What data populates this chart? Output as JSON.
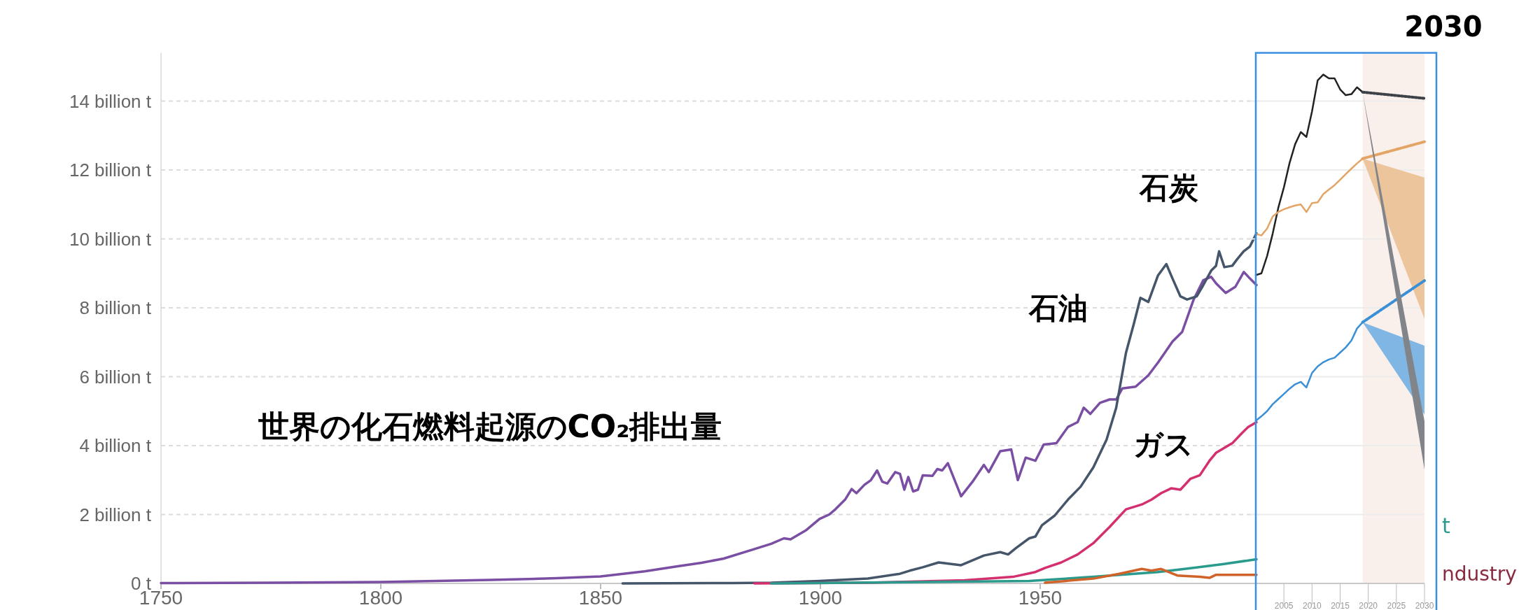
{
  "chart_data": [
    {
      "type": "line",
      "title": "世界の化石燃料起源のCO₂排出量",
      "annotations": [
        "石炭",
        "石油",
        "ガス",
        "t",
        "ndustry"
      ],
      "xlim": [
        1750,
        2000
      ],
      "xticks": [
        1750,
        1800,
        1850,
        1900,
        1950
      ],
      "ylim": [
        0,
        15.4
      ],
      "yticks": [
        {
          "value": 0,
          "label": "0 t"
        },
        {
          "value": 2,
          "label": "2 billion t"
        },
        {
          "value": 4,
          "label": "4 billion t"
        },
        {
          "value": 6,
          "label": "6 billion t"
        },
        {
          "value": 8,
          "label": "8 billion t"
        },
        {
          "value": 10,
          "label": "10 billion t"
        },
        {
          "value": 12,
          "label": "12 billion t"
        },
        {
          "value": 14,
          "label": "14 billion t"
        }
      ],
      "grid": "y",
      "series": [
        {
          "color": "#7a4fa3",
          "x": [
            1750,
            1775,
            1800,
            1825,
            1840,
            1850,
            1860,
            1867,
            1873,
            1878,
            1885,
            1888.8,
            1891.7,
            1893.2,
            1896.8,
            1899.8,
            1902,
            1903.4,
            1905.6,
            1907.1,
            1908.2,
            1910,
            1911.5,
            1912.9,
            1914.1,
            1915.2,
            1917,
            1918.1,
            1919.1,
            1920,
            1921.1,
            1922.2,
            1923.3,
            1925.5,
            1926.6,
            1927.7,
            1929,
            1932,
            1934.6,
            1937.2,
            1938.3,
            1940.9,
            1943.4,
            1944.9,
            1946.7,
            1948.9,
            1950.8,
            1953.7,
            1956.3,
            1958.5,
            1959.9,
            1961.4,
            1963.6,
            1965.8,
            1967.3,
            1968.7,
            1971.7,
            1974.6,
            1976.8,
            1980.1,
            1982.3,
            1984.9,
            1987.1,
            1988.9,
            1990,
            1992.2,
            1994.4,
            1996.3,
            1997.7,
            1999.2
          ],
          "values": [
            0.01,
            0.02,
            0.04,
            0.1,
            0.15,
            0.2,
            0.35,
            0.49,
            0.6,
            0.72,
            1.0,
            1.15,
            1.31,
            1.28,
            1.55,
            1.87,
            2.0,
            2.15,
            2.43,
            2.74,
            2.62,
            2.86,
            3.0,
            3.28,
            2.95,
            2.9,
            3.23,
            3.18,
            2.72,
            3.09,
            2.67,
            2.72,
            3.14,
            3.12,
            3.32,
            3.28,
            3.49,
            2.53,
            2.95,
            3.44,
            3.23,
            3.84,
            3.89,
            3.0,
            3.65,
            3.56,
            4.03,
            4.07,
            4.54,
            4.68,
            5.1,
            4.92,
            5.24,
            5.34,
            5.34,
            5.66,
            5.71,
            6.04,
            6.41,
            7.02,
            7.3,
            8.24,
            8.8,
            8.9,
            8.71,
            8.43,
            8.61,
            9.04,
            8.85,
            8.66
          ]
        },
        {
          "color": "#45566a",
          "x": [
            1855,
            1880,
            1888.8,
            1899.8,
            1910.8,
            1918.1,
            1920.3,
            1923.3,
            1926.9,
            1932,
            1937.2,
            1940.9,
            1942.7,
            1944.5,
            1947.5,
            1948.9,
            1950.4,
            1953.3,
            1956.3,
            1959.2,
            1962.1,
            1965.1,
            1967.3,
            1969.5,
            1971.3,
            1972.8,
            1974.6,
            1976.8,
            1978.7,
            1980.1,
            1981.9,
            1983.4,
            1985.6,
            1987.1,
            1988.9,
            1990,
            1990.7,
            1991.9,
            1993.7,
            1994.8,
            1996.3,
            1997.7,
            1999.2
          ],
          "values": [
            0.0,
            0.01,
            0.02,
            0.07,
            0.14,
            0.28,
            0.37,
            0.47,
            0.61,
            0.53,
            0.81,
            0.91,
            0.84,
            1.03,
            1.31,
            1.36,
            1.69,
            1.97,
            2.43,
            2.81,
            3.37,
            4.17,
            5.1,
            6.69,
            7.54,
            8.29,
            8.17,
            8.94,
            9.27,
            8.85,
            8.33,
            8.24,
            8.33,
            8.66,
            9.08,
            9.22,
            9.64,
            9.18,
            9.22,
            9.41,
            9.64,
            9.78,
            10.16
          ]
        },
        {
          "color": "#d4306f",
          "x": [
            1885,
            1910.8,
            1932.8,
            1943.8,
            1948.9,
            1951.1,
            1954.8,
            1958.5,
            1962.1,
            1965.8,
            1969.5,
            1973.1,
            1975.3,
            1977.5,
            1979.8,
            1981.9,
            1984.2,
            1986.3,
            1988.5,
            1990,
            1993.7,
            1995.8,
            1997.3,
            1999.2
          ],
          "values": [
            0.0,
            0.02,
            0.09,
            0.19,
            0.33,
            0.45,
            0.61,
            0.84,
            1.17,
            1.64,
            2.15,
            2.29,
            2.43,
            2.62,
            2.76,
            2.72,
            3.04,
            3.14,
            3.56,
            3.79,
            4.07,
            4.35,
            4.54,
            4.68
          ]
        },
        {
          "color": "#2a9a8c",
          "x": [
            1888.8,
            1947.5,
            1962.1,
            1976.8,
            1984.2,
            1991.5,
            1999.2
          ],
          "values": [
            0.0,
            0.07,
            0.19,
            0.33,
            0.44,
            0.56,
            0.7
          ]
        },
        {
          "color": "#d0632a",
          "x": [
            1951.1,
            1962.1,
            1968,
            1973.1,
            1975.3,
            1977.5,
            1981.2,
            1986.3,
            1988.5,
            1990,
            1999.2
          ],
          "values": [
            0.02,
            0.14,
            0.28,
            0.42,
            0.37,
            0.42,
            0.23,
            0.19,
            0.16,
            0.25,
            0.25
          ]
        }
      ]
    },
    {
      "type": "line",
      "annotations": [
        "2030"
      ],
      "xlim": [
        2000,
        2030
      ],
      "xticks": [
        2005,
        2010,
        2015,
        2020,
        2025,
        2030
      ],
      "ylim": [
        0,
        15.4
      ],
      "yticks": [
        0,
        2,
        4,
        6,
        8,
        10,
        12,
        14
      ],
      "tick_labels": "x",
      "grid": "y",
      "bands": [
        {
          "axis": "x",
          "from": 2019,
          "to": 2030,
          "color": "#faf0eb"
        }
      ],
      "series": [
        {
          "color": "#222222",
          "x": [
            2000,
            2001,
            2002,
            2003,
            2004,
            2005,
            2006,
            2007,
            2008,
            2009,
            2010,
            2011,
            2012,
            2013,
            2014,
            2015,
            2016,
            2017,
            2018,
            2019
          ],
          "values": [
            8.95,
            9.0,
            9.5,
            10.15,
            10.9,
            11.5,
            12.2,
            12.75,
            13.1,
            12.96,
            13.7,
            14.6,
            14.77,
            14.66,
            14.66,
            14.34,
            14.17,
            14.2,
            14.4,
            14.26
          ]
        },
        {
          "color": "#e3a566",
          "x": [
            2000,
            2001,
            2002,
            2003,
            2004,
            2005,
            2006,
            2007,
            2008,
            2009,
            2010,
            2011,
            2012,
            2013,
            2014,
            2015,
            2016,
            2017,
            2018,
            2019
          ],
          "values": [
            10.15,
            10.1,
            10.3,
            10.65,
            10.78,
            10.86,
            10.92,
            10.97,
            11.0,
            10.78,
            11.04,
            11.06,
            11.3,
            11.43,
            11.56,
            11.72,
            11.88,
            12.04,
            12.19,
            12.33
          ]
        },
        {
          "color": "#3a8fd6",
          "x": [
            2000,
            2001,
            2002,
            2003,
            2004,
            2005,
            2006,
            2007,
            2008,
            2009,
            2010,
            2011,
            2012,
            2013,
            2014,
            2015,
            2016,
            2017,
            2018,
            2019
          ],
          "values": [
            4.72,
            4.85,
            5.0,
            5.2,
            5.35,
            5.5,
            5.65,
            5.78,
            5.85,
            5.69,
            6.11,
            6.3,
            6.42,
            6.5,
            6.55,
            6.7,
            6.85,
            7.05,
            7.4,
            7.58
          ]
        },
        {
          "color": "#e3a566",
          "line_style": "dotted",
          "x": [
            2019,
            2030
          ],
          "values": [
            12.33,
            12.82
          ],
          "lower": [
            12.33,
            7.68
          ],
          "upper": [
            12.33,
            11.78
          ]
        },
        {
          "color": "#3a8fd6",
          "line_style": "dotted",
          "x": [
            2019,
            2030
          ],
          "values": [
            7.58,
            8.79
          ],
          "lower": [
            7.58,
            4.9
          ],
          "upper": [
            7.58,
            6.9
          ]
        },
        {
          "color": "#3d4248",
          "line_style": "dotted",
          "x": [
            2019,
            2030
          ],
          "values": [
            14.26,
            14.08
          ],
          "lower": [
            14.26,
            3.3
          ],
          "upper": [
            14.26,
            4.7
          ]
        }
      ]
    }
  ]
}
